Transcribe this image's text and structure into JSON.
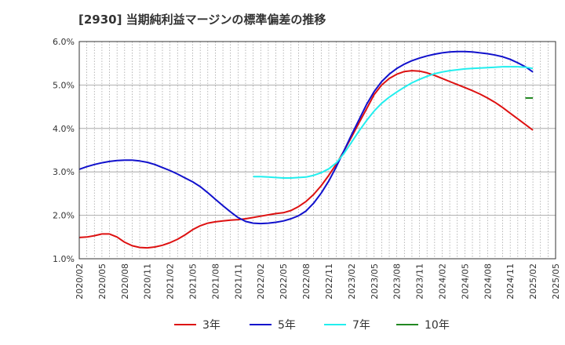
{
  "chart_data": {
    "type": "line",
    "title": "[2930]  当期純利益マージンの標準偏差の推移",
    "xlabel": "",
    "ylabel": "",
    "x_ticks": [
      "2020/02",
      "2020/05",
      "2020/08",
      "2020/11",
      "2021/02",
      "2021/05",
      "2021/08",
      "2021/11",
      "2022/02",
      "2022/05",
      "2022/08",
      "2022/11",
      "2023/02",
      "2023/05",
      "2023/08",
      "2023/11",
      "2024/02",
      "2024/05",
      "2024/08",
      "2024/11",
      "2025/02",
      "2025/05"
    ],
    "y_ticks": [
      "1.0%",
      "2.0%",
      "3.0%",
      "4.0%",
      "5.0%",
      "6.0%"
    ],
    "ylim": [
      1.0,
      6.0
    ],
    "x_range": [
      "2020/02",
      "2025/05"
    ],
    "grid": true,
    "legend_position": "bottom",
    "series": [
      {
        "name": "3年",
        "color": "#dd1111",
        "points": [
          [
            "2020/02",
            1.49
          ],
          [
            "2020/03",
            1.5
          ],
          [
            "2020/04",
            1.53
          ],
          [
            "2020/05",
            1.57
          ],
          [
            "2020/06",
            1.57
          ],
          [
            "2020/07",
            1.5
          ],
          [
            "2020/08",
            1.38
          ],
          [
            "2020/09",
            1.3
          ],
          [
            "2020/10",
            1.26
          ],
          [
            "2020/11",
            1.25
          ],
          [
            "2020/12",
            1.27
          ],
          [
            "2021/01",
            1.31
          ],
          [
            "2021/02",
            1.37
          ],
          [
            "2021/03",
            1.45
          ],
          [
            "2021/04",
            1.55
          ],
          [
            "2021/05",
            1.67
          ],
          [
            "2021/06",
            1.76
          ],
          [
            "2021/07",
            1.82
          ],
          [
            "2021/08",
            1.85
          ],
          [
            "2021/09",
            1.87
          ],
          [
            "2021/10",
            1.89
          ],
          [
            "2021/11",
            1.9
          ],
          [
            "2021/12",
            1.92
          ],
          [
            "2022/01",
            1.95
          ],
          [
            "2022/02",
            1.98
          ],
          [
            "2022/03",
            2.01
          ],
          [
            "2022/04",
            2.04
          ],
          [
            "2022/05",
            2.06
          ],
          [
            "2022/06",
            2.11
          ],
          [
            "2022/07",
            2.2
          ],
          [
            "2022/08",
            2.32
          ],
          [
            "2022/09",
            2.48
          ],
          [
            "2022/10",
            2.68
          ],
          [
            "2022/11",
            2.92
          ],
          [
            "2022/12",
            3.18
          ],
          [
            "2023/01",
            3.48
          ],
          [
            "2023/02",
            3.8
          ],
          [
            "2023/03",
            4.13
          ],
          [
            "2023/04",
            4.45
          ],
          [
            "2023/05",
            4.78
          ],
          [
            "2023/06",
            5.0
          ],
          [
            "2023/07",
            5.15
          ],
          [
            "2023/08",
            5.25
          ],
          [
            "2023/09",
            5.31
          ],
          [
            "2023/10",
            5.33
          ],
          [
            "2023/11",
            5.32
          ],
          [
            "2023/12",
            5.28
          ],
          [
            "2024/01",
            5.22
          ],
          [
            "2024/02",
            5.15
          ],
          [
            "2024/03",
            5.08
          ],
          [
            "2024/04",
            5.01
          ],
          [
            "2024/05",
            4.94
          ],
          [
            "2024/06",
            4.87
          ],
          [
            "2024/07",
            4.79
          ],
          [
            "2024/08",
            4.7
          ],
          [
            "2024/09",
            4.6
          ],
          [
            "2024/10",
            4.48
          ],
          [
            "2024/11",
            4.35
          ],
          [
            "2024/12",
            4.22
          ],
          [
            "2025/01",
            4.09
          ],
          [
            "2025/02",
            3.96
          ]
        ]
      },
      {
        "name": "5年",
        "color": "#1111cc",
        "points": [
          [
            "2020/02",
            3.06
          ],
          [
            "2020/03",
            3.12
          ],
          [
            "2020/04",
            3.17
          ],
          [
            "2020/05",
            3.21
          ],
          [
            "2020/06",
            3.24
          ],
          [
            "2020/07",
            3.26
          ],
          [
            "2020/08",
            3.27
          ],
          [
            "2020/09",
            3.27
          ],
          [
            "2020/10",
            3.25
          ],
          [
            "2020/11",
            3.22
          ],
          [
            "2020/12",
            3.17
          ],
          [
            "2021/01",
            3.1
          ],
          [
            "2021/02",
            3.03
          ],
          [
            "2021/03",
            2.95
          ],
          [
            "2021/04",
            2.86
          ],
          [
            "2021/05",
            2.77
          ],
          [
            "2021/06",
            2.66
          ],
          [
            "2021/07",
            2.52
          ],
          [
            "2021/08",
            2.37
          ],
          [
            "2021/09",
            2.22
          ],
          [
            "2021/10",
            2.08
          ],
          [
            "2021/11",
            1.95
          ],
          [
            "2021/12",
            1.86
          ],
          [
            "2022/01",
            1.82
          ],
          [
            "2022/02",
            1.81
          ],
          [
            "2022/03",
            1.82
          ],
          [
            "2022/04",
            1.84
          ],
          [
            "2022/05",
            1.87
          ],
          [
            "2022/06",
            1.92
          ],
          [
            "2022/07",
            1.99
          ],
          [
            "2022/08",
            2.1
          ],
          [
            "2022/09",
            2.28
          ],
          [
            "2022/10",
            2.51
          ],
          [
            "2022/11",
            2.79
          ],
          [
            "2022/12",
            3.12
          ],
          [
            "2023/01",
            3.48
          ],
          [
            "2023/02",
            3.85
          ],
          [
            "2023/03",
            4.2
          ],
          [
            "2023/04",
            4.55
          ],
          [
            "2023/05",
            4.85
          ],
          [
            "2023/06",
            5.08
          ],
          [
            "2023/07",
            5.25
          ],
          [
            "2023/08",
            5.38
          ],
          [
            "2023/09",
            5.48
          ],
          [
            "2023/10",
            5.56
          ],
          [
            "2023/11",
            5.62
          ],
          [
            "2023/12",
            5.67
          ],
          [
            "2024/01",
            5.71
          ],
          [
            "2024/02",
            5.74
          ],
          [
            "2024/03",
            5.76
          ],
          [
            "2024/04",
            5.77
          ],
          [
            "2024/05",
            5.77
          ],
          [
            "2024/06",
            5.76
          ],
          [
            "2024/07",
            5.74
          ],
          [
            "2024/08",
            5.72
          ],
          [
            "2024/09",
            5.69
          ],
          [
            "2024/10",
            5.65
          ],
          [
            "2024/11",
            5.59
          ],
          [
            "2024/12",
            5.51
          ],
          [
            "2025/01",
            5.42
          ],
          [
            "2025/02",
            5.3
          ]
        ]
      },
      {
        "name": "7年",
        "color": "#22eeee",
        "points": [
          [
            "2022/01",
            2.89
          ],
          [
            "2022/02",
            2.89
          ],
          [
            "2022/03",
            2.88
          ],
          [
            "2022/04",
            2.87
          ],
          [
            "2022/05",
            2.86
          ],
          [
            "2022/06",
            2.86
          ],
          [
            "2022/07",
            2.87
          ],
          [
            "2022/08",
            2.88
          ],
          [
            "2022/09",
            2.92
          ],
          [
            "2022/10",
            2.98
          ],
          [
            "2022/11",
            3.07
          ],
          [
            "2022/12",
            3.21
          ],
          [
            "2023/01",
            3.42
          ],
          [
            "2023/02",
            3.68
          ],
          [
            "2023/03",
            3.94
          ],
          [
            "2023/04",
            4.18
          ],
          [
            "2023/05",
            4.4
          ],
          [
            "2023/06",
            4.58
          ],
          [
            "2023/07",
            4.72
          ],
          [
            "2023/08",
            4.84
          ],
          [
            "2023/09",
            4.95
          ],
          [
            "2023/10",
            5.05
          ],
          [
            "2023/11",
            5.13
          ],
          [
            "2023/12",
            5.2
          ],
          [
            "2024/01",
            5.26
          ],
          [
            "2024/02",
            5.3
          ],
          [
            "2024/03",
            5.33
          ],
          [
            "2024/04",
            5.35
          ],
          [
            "2024/05",
            5.37
          ],
          [
            "2024/06",
            5.38
          ],
          [
            "2024/07",
            5.39
          ],
          [
            "2024/08",
            5.4
          ],
          [
            "2024/09",
            5.41
          ],
          [
            "2024/10",
            5.42
          ],
          [
            "2024/11",
            5.42
          ],
          [
            "2024/12",
            5.42
          ],
          [
            "2025/01",
            5.41
          ],
          [
            "2025/02",
            5.38
          ]
        ]
      },
      {
        "name": "10年",
        "color": "#228822",
        "points": [
          [
            "2025/01",
            4.7
          ],
          [
            "2025/02",
            4.7
          ]
        ]
      }
    ]
  }
}
